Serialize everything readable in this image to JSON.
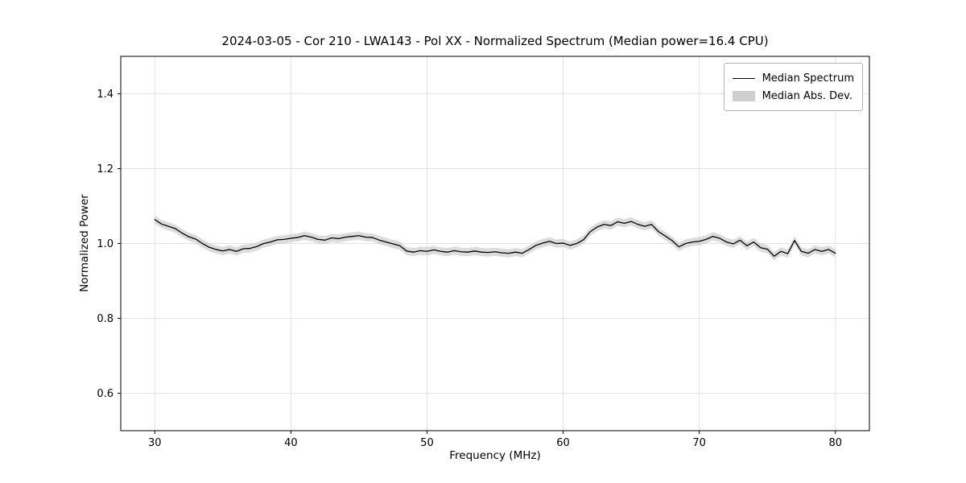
{
  "figure": {
    "title": "2024-03-05 - Cor 210 - LWA143 - Pol XX - Normalized Spectrum (Median power=16.4 CPU)",
    "xlabel": "Frequency (MHz)",
    "ylabel": "Normalized Power"
  },
  "legend": {
    "items": [
      {
        "label": "Median Spectrum",
        "type": "line",
        "color": "#000000"
      },
      {
        "label": "Median Abs. Dev.",
        "type": "patch",
        "color": "#cfcfcf"
      }
    ]
  },
  "chart_data": {
    "type": "line",
    "title": "2024-03-05 - Cor 210 - LWA143 - Pol XX - Normalized Spectrum (Median power=16.4 CPU)",
    "xlabel": "Frequency (MHz)",
    "ylabel": "Normalized Power",
    "xlim": [
      27.5,
      82.5
    ],
    "ylim": [
      0.5,
      1.5
    ],
    "xticks": [
      30,
      40,
      50,
      60,
      70,
      80
    ],
    "xtick_labels": [
      "30",
      "40",
      "50",
      "60",
      "70",
      "80"
    ],
    "yticks": [
      0.6,
      0.8,
      1.0,
      1.2,
      1.4
    ],
    "ytick_labels": [
      "0.6",
      "0.8",
      "1.0",
      "1.2",
      "1.4"
    ],
    "grid": true,
    "legend_position": "upper right",
    "line_color": "#000000",
    "band_color": "#c4c4c4",
    "band_halfwidth": 0.011,
    "series": [
      {
        "name": "Median Spectrum",
        "x": [
          30,
          30.5,
          31,
          31.5,
          32,
          32.5,
          33,
          33.5,
          34,
          34.5,
          35,
          35.5,
          36,
          36.5,
          37,
          37.5,
          38,
          38.5,
          39,
          39.5,
          40,
          40.5,
          41,
          41.5,
          42,
          42.5,
          43,
          43.5,
          44,
          44.5,
          45,
          45.5,
          46,
          46.5,
          47,
          47.5,
          48,
          48.5,
          49,
          49.5,
          50,
          50.5,
          51,
          51.5,
          52,
          52.5,
          53,
          53.5,
          54,
          54.5,
          55,
          55.5,
          56,
          56.5,
          57,
          57.5,
          58,
          58.5,
          59,
          59.5,
          60,
          60.5,
          61,
          61.5,
          62,
          62.5,
          63,
          63.5,
          64,
          64.5,
          65,
          65.5,
          66,
          66.5,
          67,
          67.5,
          68,
          68.5,
          69,
          69.5,
          70,
          70.5,
          71,
          71.5,
          72,
          72.5,
          73,
          73.5,
          74,
          74.5,
          75,
          75.5,
          76,
          76.5,
          77,
          77.5,
          78,
          78.5,
          79,
          79.5,
          80
        ],
        "y": [
          1.064,
          1.052,
          1.046,
          1.04,
          1.028,
          1.018,
          1.012,
          1.0,
          0.99,
          0.984,
          0.98,
          0.984,
          0.979,
          0.986,
          0.987,
          0.992,
          1.0,
          1.004,
          1.01,
          1.011,
          1.014,
          1.016,
          1.021,
          1.017,
          1.011,
          1.009,
          1.015,
          1.013,
          1.017,
          1.019,
          1.021,
          1.017,
          1.016,
          1.009,
          1.004,
          0.999,
          0.994,
          0.98,
          0.977,
          0.981,
          0.979,
          0.983,
          0.979,
          0.977,
          0.981,
          0.978,
          0.977,
          0.98,
          0.977,
          0.976,
          0.978,
          0.975,
          0.974,
          0.977,
          0.974,
          0.984,
          0.995,
          1.001,
          1.006,
          1.0,
          1.001,
          0.995,
          1.0,
          1.01,
          1.032,
          1.044,
          1.051,
          1.048,
          1.058,
          1.054,
          1.059,
          1.051,
          1.046,
          1.051,
          1.032,
          1.02,
          1.008,
          0.991,
          1.0,
          1.004,
          1.006,
          1.011,
          1.019,
          1.014,
          1.004,
          0.999,
          1.009,
          0.994,
          1.004,
          0.989,
          0.985,
          0.966,
          0.979,
          0.973,
          1.008,
          0.979,
          0.974,
          0.984,
          0.979,
          0.984,
          0.974
        ]
      },
      {
        "name": "Median Abs. Dev.",
        "band_halfwidth": 0.011
      }
    ]
  }
}
